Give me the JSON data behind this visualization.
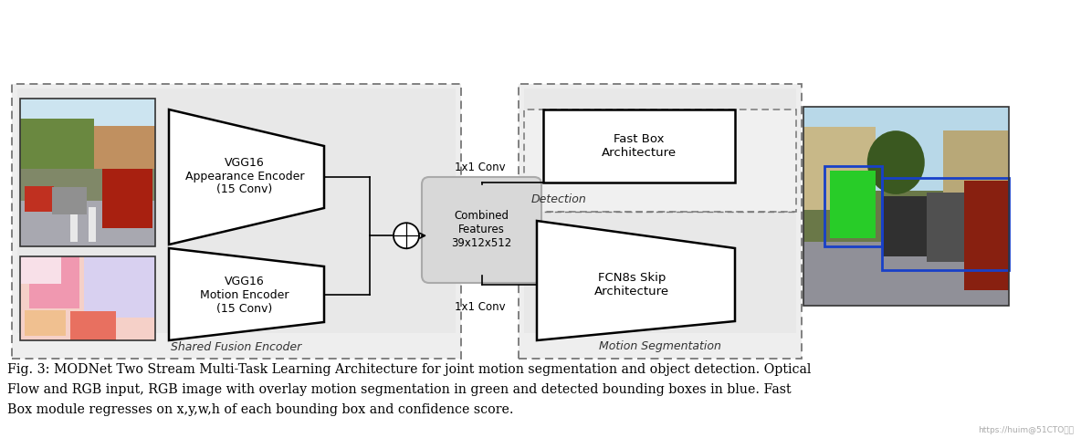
{
  "fig_width": 11.84,
  "fig_height": 4.8,
  "bg_color": "#ffffff",
  "caption_line1": "Fig. 3: MODNet Two Stream Multi-Task Learning Architecture for joint motion segmentation and object detection. Optical",
  "caption_line2": "Flow and RGB input, RGB image with overlay motion segmentation in green and detected bounding boxes in blue. Fast",
  "caption_line3": "Box module regresses on x,y,w,h of each bounding box and confidence score.",
  "caption_fontsize": 10.2,
  "shared_fusion_label": "Shared Fusion Encoder",
  "motion_seg_label": "Motion Segmentation",
  "detection_label": "Detection",
  "appearance_box_text": "VGG16\nAppearance Encoder\n(15 Conv)",
  "motion_box_text": "VGG16\nMotion Encoder\n(15 Conv)",
  "combined_box_text": "Combined\nFeatures\n39x12x512",
  "fast_box_text": "Fast Box\nArchitecture",
  "fcn_box_text": "FCN8s Skip\nArchitecture",
  "conv_top_label": "1x1 Conv",
  "conv_bottom_label": "1x1 Conv",
  "watermark": "https://huim@51CTO博客",
  "dash_color": "#777777",
  "box_bg": "#eeeeee",
  "inner_bg": "#e8e8e8"
}
